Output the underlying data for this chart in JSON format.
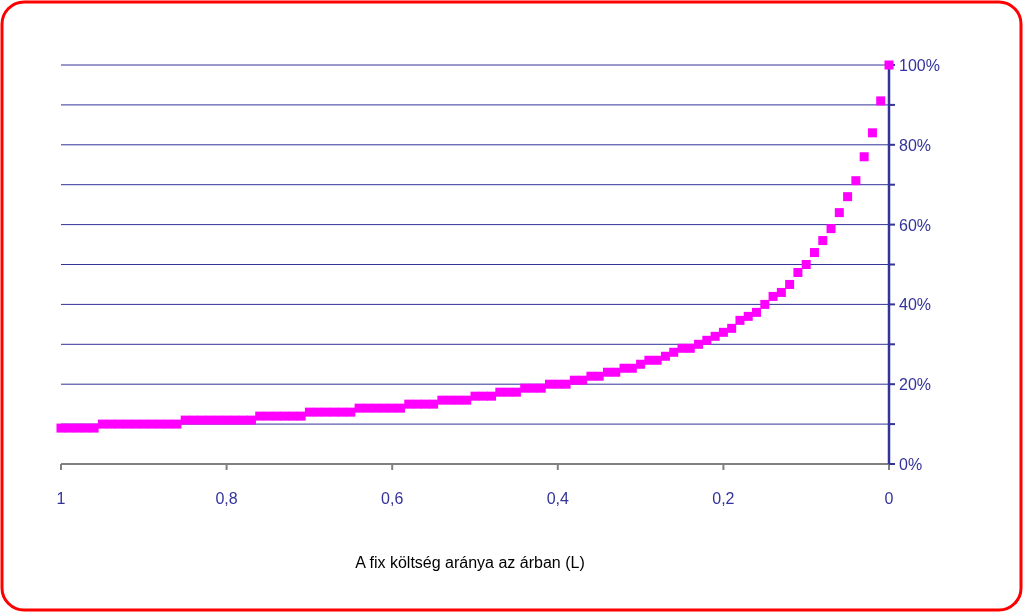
{
  "chart_data": {
    "type": "scatter",
    "xlabel": "A fix költség aránya az árban (L)",
    "x": [
      1,
      0.99,
      0.98,
      0.97,
      0.96,
      0.95,
      0.94,
      0.93,
      0.92,
      0.91,
      0.9,
      0.89,
      0.88,
      0.87,
      0.86,
      0.85,
      0.84,
      0.83,
      0.82,
      0.81,
      0.8,
      0.79,
      0.78,
      0.77,
      0.76,
      0.75,
      0.74,
      0.73,
      0.72,
      0.71,
      0.7,
      0.69,
      0.68,
      0.67,
      0.66,
      0.65,
      0.64,
      0.63,
      0.62,
      0.61,
      0.6,
      0.59,
      0.58,
      0.57,
      0.56,
      0.55,
      0.54,
      0.53,
      0.52,
      0.51,
      0.5,
      0.49,
      0.48,
      0.47,
      0.46,
      0.45,
      0.44,
      0.43,
      0.42,
      0.41,
      0.4,
      0.39,
      0.38,
      0.37,
      0.36,
      0.35,
      0.34,
      0.33,
      0.32,
      0.31,
      0.3,
      0.29,
      0.28,
      0.27,
      0.26,
      0.25,
      0.24,
      0.23,
      0.22,
      0.21,
      0.2,
      0.19,
      0.18,
      0.17,
      0.16,
      0.15,
      0.14,
      0.13,
      0.12,
      0.11,
      0.1,
      0.09,
      0.08,
      0.07,
      0.06,
      0.05,
      0.04,
      0.03,
      0.02,
      0.01,
      0
    ],
    "series": [
      {
        "color": "#ff00ff",
        "values": [
          0.09,
          0.09,
          0.09,
          0.09,
          0.09,
          0.1,
          0.1,
          0.1,
          0.1,
          0.1,
          0.1,
          0.1,
          0.1,
          0.1,
          0.1,
          0.11,
          0.11,
          0.11,
          0.11,
          0.11,
          0.11,
          0.11,
          0.11,
          0.11,
          0.12,
          0.12,
          0.12,
          0.12,
          0.12,
          0.12,
          0.13,
          0.13,
          0.13,
          0.13,
          0.13,
          0.13,
          0.14,
          0.14,
          0.14,
          0.14,
          0.14,
          0.14,
          0.15,
          0.15,
          0.15,
          0.15,
          0.16,
          0.16,
          0.16,
          0.16,
          0.17,
          0.17,
          0.17,
          0.18,
          0.18,
          0.18,
          0.19,
          0.19,
          0.19,
          0.2,
          0.2,
          0.2,
          0.21,
          0.21,
          0.22,
          0.22,
          0.23,
          0.23,
          0.24,
          0.24,
          0.25,
          0.26,
          0.26,
          0.27,
          0.28,
          0.29,
          0.29,
          0.3,
          0.31,
          0.32,
          0.33,
          0.34,
          0.36,
          0.37,
          0.38,
          0.4,
          0.42,
          0.43,
          0.45,
          0.48,
          0.5,
          0.53,
          0.56,
          0.59,
          0.63,
          0.67,
          0.71,
          0.77,
          0.83,
          0.91,
          1
        ]
      }
    ],
    "xlim": [
      1,
      0
    ],
    "xticks": [
      {
        "value": 1,
        "label": "1"
      },
      {
        "value": 0.8,
        "label": "0,8"
      },
      {
        "value": 0.6,
        "label": "0,6"
      },
      {
        "value": 0.4,
        "label": "0,4"
      },
      {
        "value": 0.2,
        "label": "0,2"
      },
      {
        "value": 0,
        "label": "0"
      }
    ],
    "ylim": [
      0,
      1
    ],
    "yticks": [
      {
        "value": 0,
        "label": "0%"
      },
      {
        "value": 0.1,
        "label": null
      },
      {
        "value": 0.2,
        "label": "20%"
      },
      {
        "value": 0.3,
        "label": null
      },
      {
        "value": 0.4,
        "label": "40%"
      },
      {
        "value": 0.5,
        "label": null
      },
      {
        "value": 0.6,
        "label": "60%"
      },
      {
        "value": 0.7,
        "label": null
      },
      {
        "value": 0.8,
        "label": "80%"
      },
      {
        "value": 0.9,
        "label": null
      },
      {
        "value": 1,
        "label": "100%"
      }
    ],
    "grid": "y",
    "marker": "square"
  }
}
